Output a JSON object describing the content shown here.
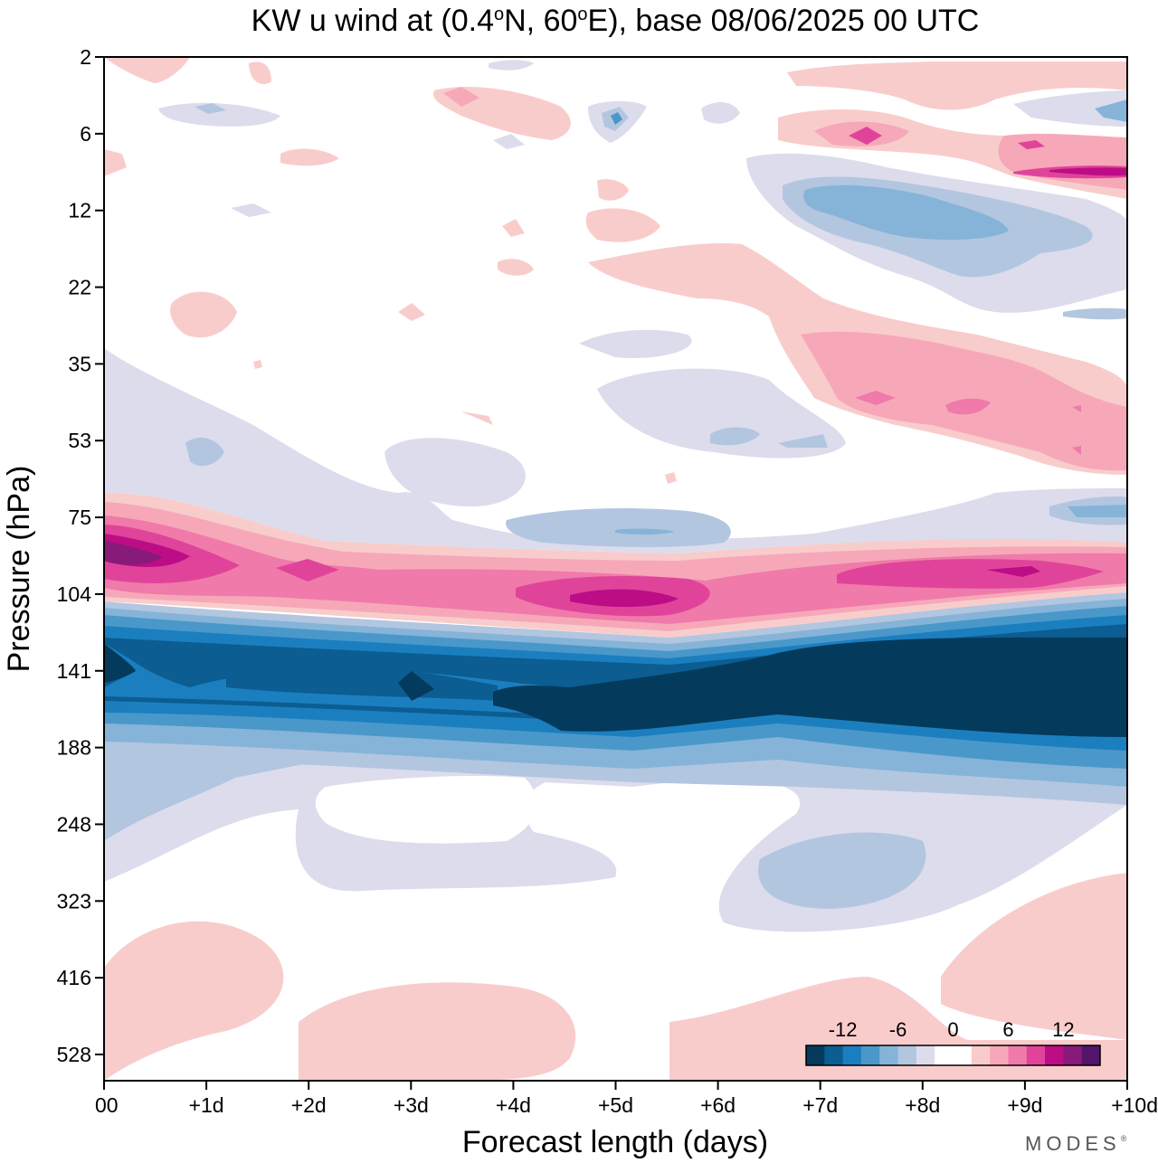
{
  "chart_data": {
    "type": "heatmap",
    "title_parts": [
      "KW u wind at (0.4",
      "o",
      "N, 60",
      "o",
      "E),  base 08/06/2025  00 UTC"
    ],
    "xlabel": "Forecast length (days)",
    "ylabel": "Pressure (hPa)",
    "x_tick_labels": [
      "00",
      "+1d",
      "+2d",
      "+3d",
      "+4d",
      "+5d",
      "+6d",
      "+7d",
      "+8d",
      "+9d",
      "+10d"
    ],
    "y_tick_labels": [
      "2",
      "6",
      "12",
      "22",
      "35",
      "53",
      "75",
      "104",
      "141",
      "188",
      "248",
      "323",
      "416",
      "528"
    ],
    "xlim_days": [
      0,
      10
    ],
    "ylim_hPa": [
      2,
      600
    ],
    "colorbar": {
      "tick_labels": [
        "-12",
        "-6",
        "0",
        "6",
        "12"
      ],
      "colors": [
        "#043a5c",
        "#0b5d92",
        "#1b7fbf",
        "#4a98c9",
        "#86b4d8",
        "#b3c6e0",
        "#dcdcec",
        "#ffffff",
        "#ffffff",
        "#f9cccc",
        "#f6a8b9",
        "#f07aa9",
        "#e0449a",
        "#bc0d86",
        "#881a7a",
        "#521569"
      ]
    },
    "features": [
      {
        "kind": "westerly-max",
        "level_hPa": 90,
        "value_approx_ms": 15,
        "note": "pink band 75–110 hPa, strongest near day 0 and day 5"
      },
      {
        "kind": "easterly-jet",
        "level_hPa": 150,
        "value_approx_ms": -16,
        "note": "dark blue band 110–190 hPa, strengthening after day 5"
      },
      {
        "kind": "easterly-patch",
        "level_hPa": 13,
        "days": [
          7,
          10
        ],
        "value_approx_ms": -6
      },
      {
        "kind": "westerly-patch",
        "level_hPa": 40,
        "days": [
          7,
          10
        ],
        "value_approx_ms": 6
      },
      {
        "kind": "weak-westerlies",
        "level_hPa": 450,
        "value_approx_ms": 2
      }
    ]
  },
  "brand": "MODES",
  "brand_mark": "®"
}
